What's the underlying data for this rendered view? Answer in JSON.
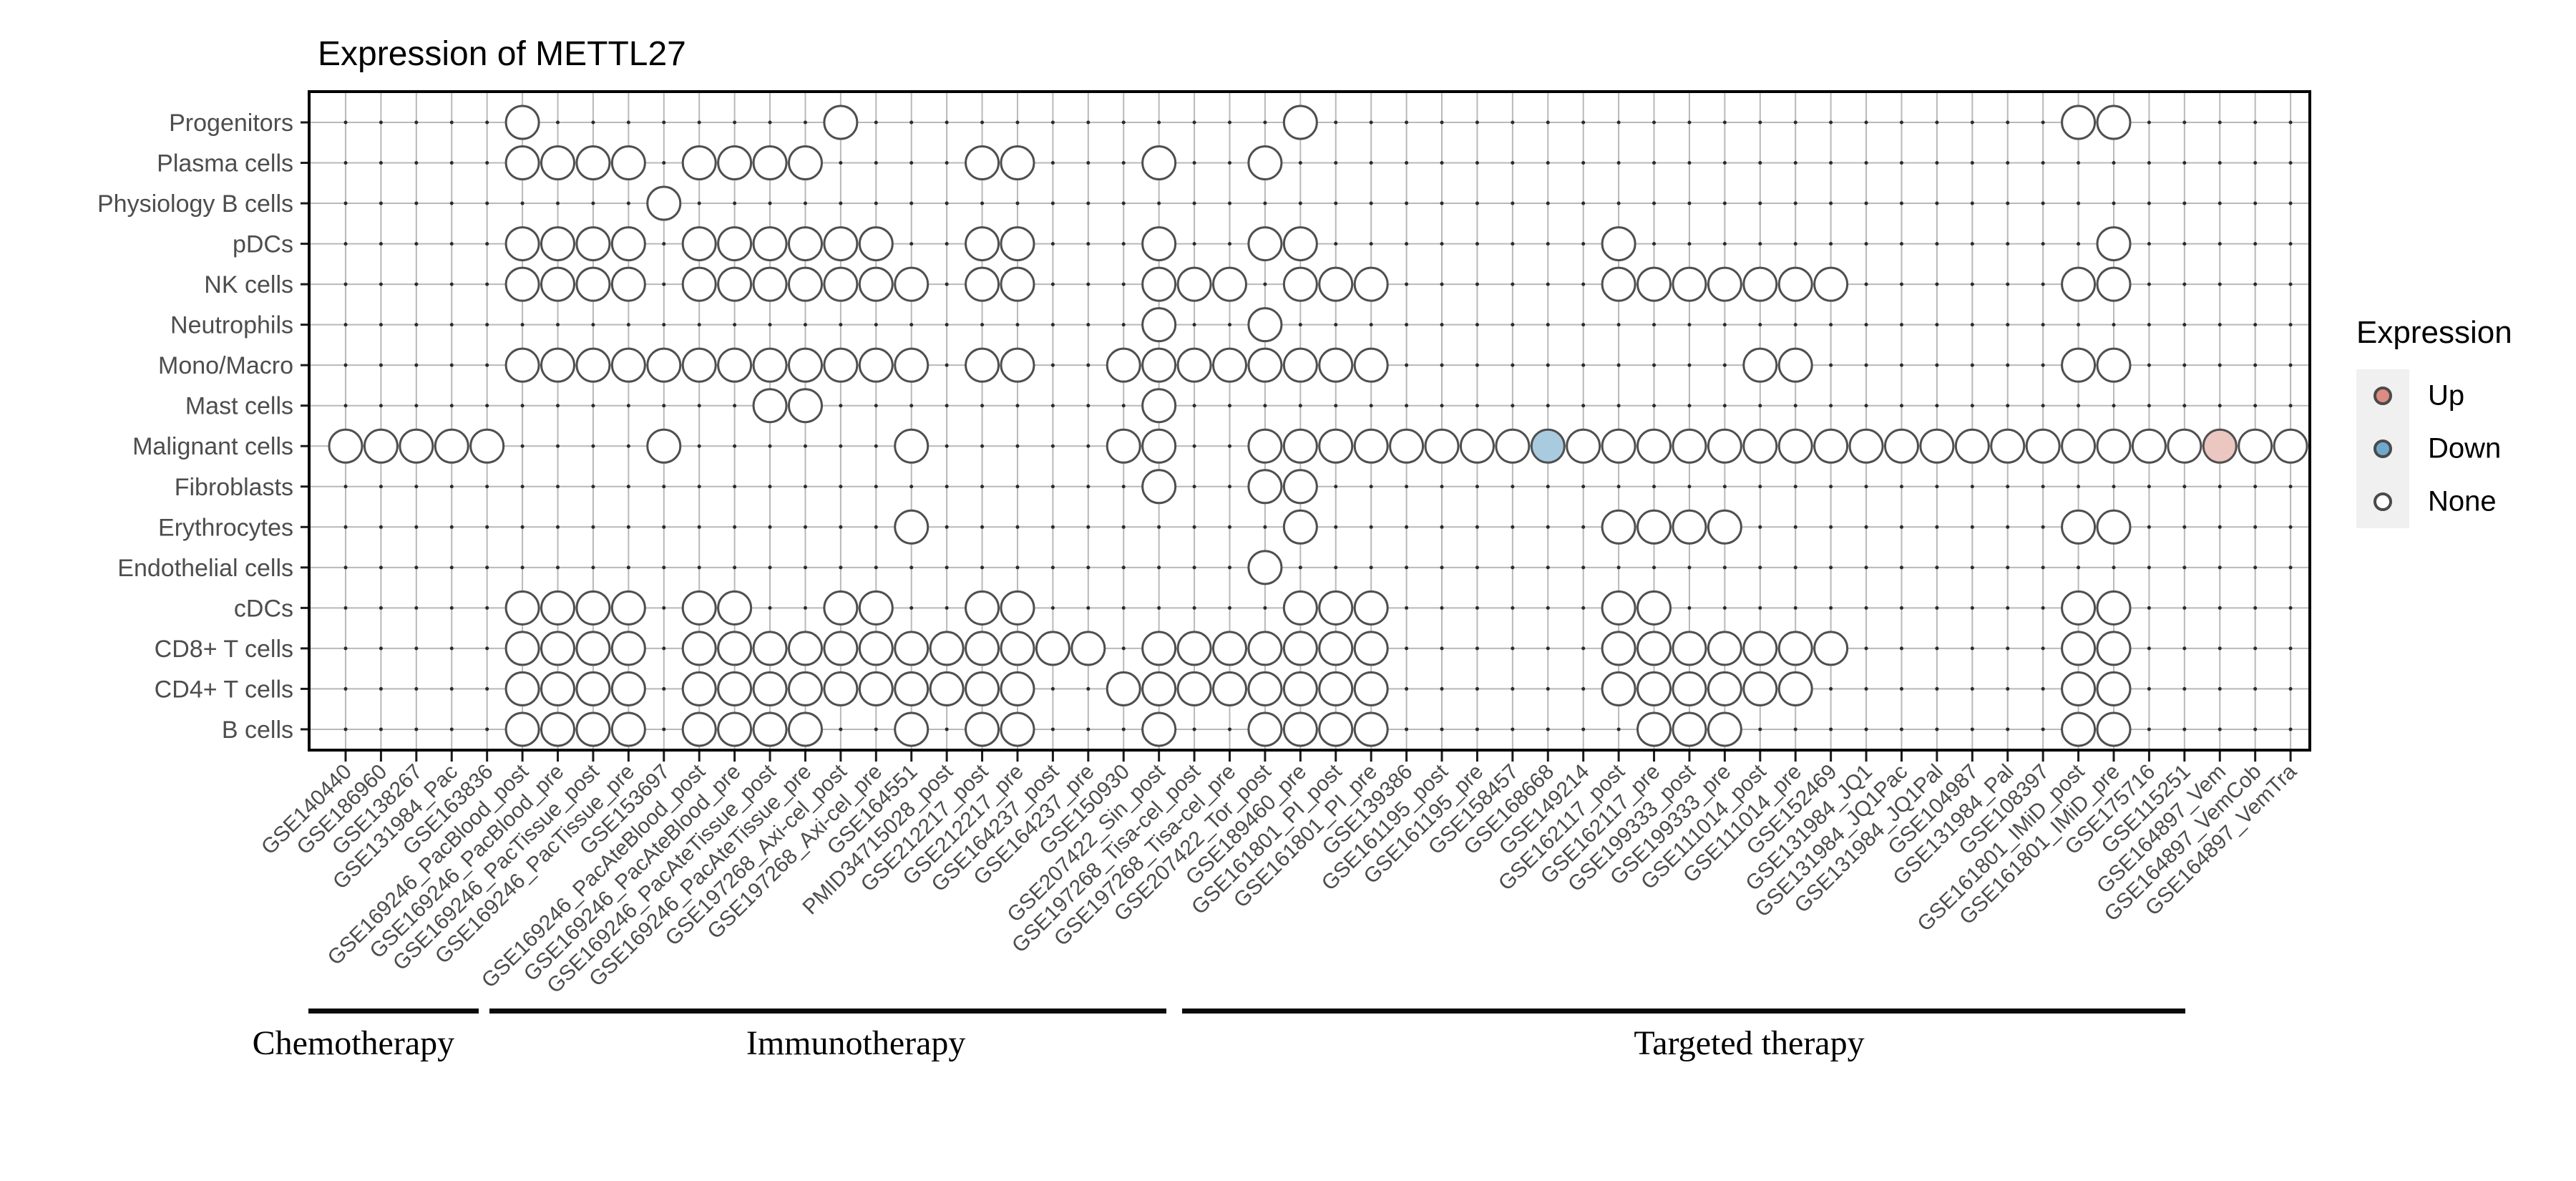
{
  "title": "Expression of METTL27",
  "legend": {
    "title": "Expression",
    "items": [
      {
        "label": "Up",
        "color": "#DD8C82"
      },
      {
        "label": "Down",
        "color": "#6FA8CF"
      },
      {
        "label": "None",
        "color": "#FFFFFF"
      }
    ]
  },
  "groups": [
    {
      "label": "Chemotherapy",
      "from_col": -1.05,
      "to_col": 3.77,
      "label_at_col": 0.22
    },
    {
      "label": "Immunotherapy",
      "from_col": 4.07,
      "to_col": 23.2,
      "label_at_col": 14.43
    },
    {
      "label": "Targeted therapy",
      "from_col": 23.66,
      "to_col": 52.03,
      "label_at_col": 39.69
    }
  ],
  "colors": {
    "border": "#000000",
    "grid": "#b9b9b9",
    "intersection_dot": "#2b2b2b",
    "tick": "#1a1a1a",
    "axis_text": "#4d4d4d",
    "circle_stroke": "#4f4f4f",
    "none_fill": "#ffffff",
    "up_fill": "#ECC6C1",
    "down_fill": "#A9CBE0"
  },
  "chart_data": {
    "type": "dot-matrix",
    "title": "Expression of METTL27",
    "legend_position": "right",
    "rows": [
      "Progenitors",
      "Plasma cells",
      "Physiology B cells",
      "pDCs",
      "NK cells",
      "Neutrophils",
      "Mono/Macro",
      "Mast cells",
      "Malignant cells",
      "Fibroblasts",
      "Erythrocytes",
      "Endothelial cells",
      "cDCs",
      "CD8+ T cells",
      "CD4+ T cells",
      "B cells"
    ],
    "columns": [
      "GSE140440",
      "GSE186960",
      "GSE138267",
      "GSE131984_Pac",
      "GSE163836",
      "GSE169246_PacBlood_post",
      "GSE169246_PacBlood_pre",
      "GSE169246_PacTissue_post",
      "GSE169246_PacTissue_pre",
      "GSE153697",
      "GSE169246_PacAteBlood_post",
      "GSE169246_PacAteBlood_pre",
      "GSE169246_PacAteTissue_post",
      "GSE169246_PacAteTissue_pre",
      "GSE197268_Axi-cel_post",
      "GSE197268_Axi-cel_pre",
      "GSE164551",
      "PMID34715028_post",
      "GSE212217_post",
      "GSE212217_pre",
      "GSE164237_post",
      "GSE164237_pre",
      "GSE150930",
      "GSE207422_Sin_post",
      "GSE197268_Tisa-cel_post",
      "GSE197268_Tisa-cel_pre",
      "GSE207422_Tor_post",
      "GSE189460_pre",
      "GSE161801_PI_post",
      "GSE161801_PI_pre",
      "GSE139386",
      "GSE161195_post",
      "GSE161195_pre",
      "GSE158457",
      "GSE168668",
      "GSE149214",
      "GSE162117_post",
      "GSE162117_pre",
      "GSE199333_post",
      "GSE199333_pre",
      "GSE111014_post",
      "GSE111014_pre",
      "GSE152469",
      "GSE131984_JQ1",
      "GSE131984_JQ1Pac",
      "GSE131984_JQ1Pal",
      "GSE104987",
      "GSE131984_Pal",
      "GSE108397",
      "GSE161801_IMiD_post",
      "GSE161801_IMiD_pre",
      "GSE175716",
      "GSE115251",
      "GSE164897_Vem",
      "GSE164897_VemCob",
      "GSE164897_VemTra"
    ],
    "presence": {
      "Progenitors": [
        5,
        14,
        27,
        49,
        50
      ],
      "Plasma cells": [
        5,
        6,
        7,
        8,
        10,
        11,
        12,
        13,
        18,
        19,
        23,
        26
      ],
      "Physiology B cells": [
        9
      ],
      "pDCs": [
        5,
        6,
        7,
        8,
        10,
        11,
        12,
        13,
        14,
        15,
        18,
        19,
        23,
        26,
        27,
        36,
        50
      ],
      "NK cells": [
        5,
        6,
        7,
        8,
        10,
        11,
        12,
        13,
        14,
        15,
        16,
        18,
        19,
        23,
        24,
        25,
        27,
        28,
        29,
        36,
        37,
        38,
        39,
        40,
        41,
        42,
        49,
        50
      ],
      "Neutrophils": [
        23,
        26
      ],
      "Mono/Macro": [
        5,
        6,
        7,
        8,
        9,
        10,
        11,
        12,
        13,
        14,
        15,
        16,
        18,
        19,
        22,
        23,
        24,
        25,
        26,
        27,
        28,
        29,
        40,
        41,
        49,
        50
      ],
      "Mast cells": [
        12,
        13,
        23
      ],
      "Malignant cells": [
        0,
        1,
        2,
        3,
        4,
        9,
        16,
        22,
        23,
        26,
        27,
        28,
        29,
        30,
        31,
        32,
        33,
        34,
        35,
        36,
        37,
        38,
        39,
        40,
        41,
        42,
        43,
        44,
        45,
        46,
        47,
        48,
        49,
        50,
        51,
        52,
        53,
        54,
        55
      ],
      "Fibroblasts": [
        23,
        26,
        27
      ],
      "Erythrocytes": [
        16,
        27,
        36,
        37,
        38,
        39,
        49,
        50
      ],
      "Endothelial cells": [
        26
      ],
      "cDCs": [
        5,
        6,
        7,
        8,
        10,
        11,
        14,
        15,
        18,
        19,
        27,
        28,
        29,
        36,
        37,
        49,
        50
      ],
      "CD8+ T cells": [
        5,
        6,
        7,
        8,
        10,
        11,
        12,
        13,
        14,
        15,
        16,
        17,
        18,
        19,
        20,
        21,
        23,
        24,
        25,
        26,
        27,
        28,
        29,
        36,
        37,
        38,
        39,
        40,
        41,
        42,
        49,
        50
      ],
      "CD4+ T cells": [
        5,
        6,
        7,
        8,
        10,
        11,
        12,
        13,
        14,
        15,
        16,
        17,
        18,
        19,
        22,
        23,
        24,
        25,
        26,
        27,
        28,
        29,
        36,
        37,
        38,
        39,
        40,
        41,
        49,
        50
      ],
      "B cells": [
        5,
        6,
        7,
        8,
        10,
        11,
        12,
        13,
        16,
        18,
        19,
        23,
        26,
        27,
        28,
        29,
        37,
        38,
        39,
        49,
        50
      ]
    },
    "up_points": [
      {
        "row": "Malignant cells",
        "col": 53
      }
    ],
    "down_points": [
      {
        "row": "Malignant cells",
        "col": 34
      }
    ]
  }
}
